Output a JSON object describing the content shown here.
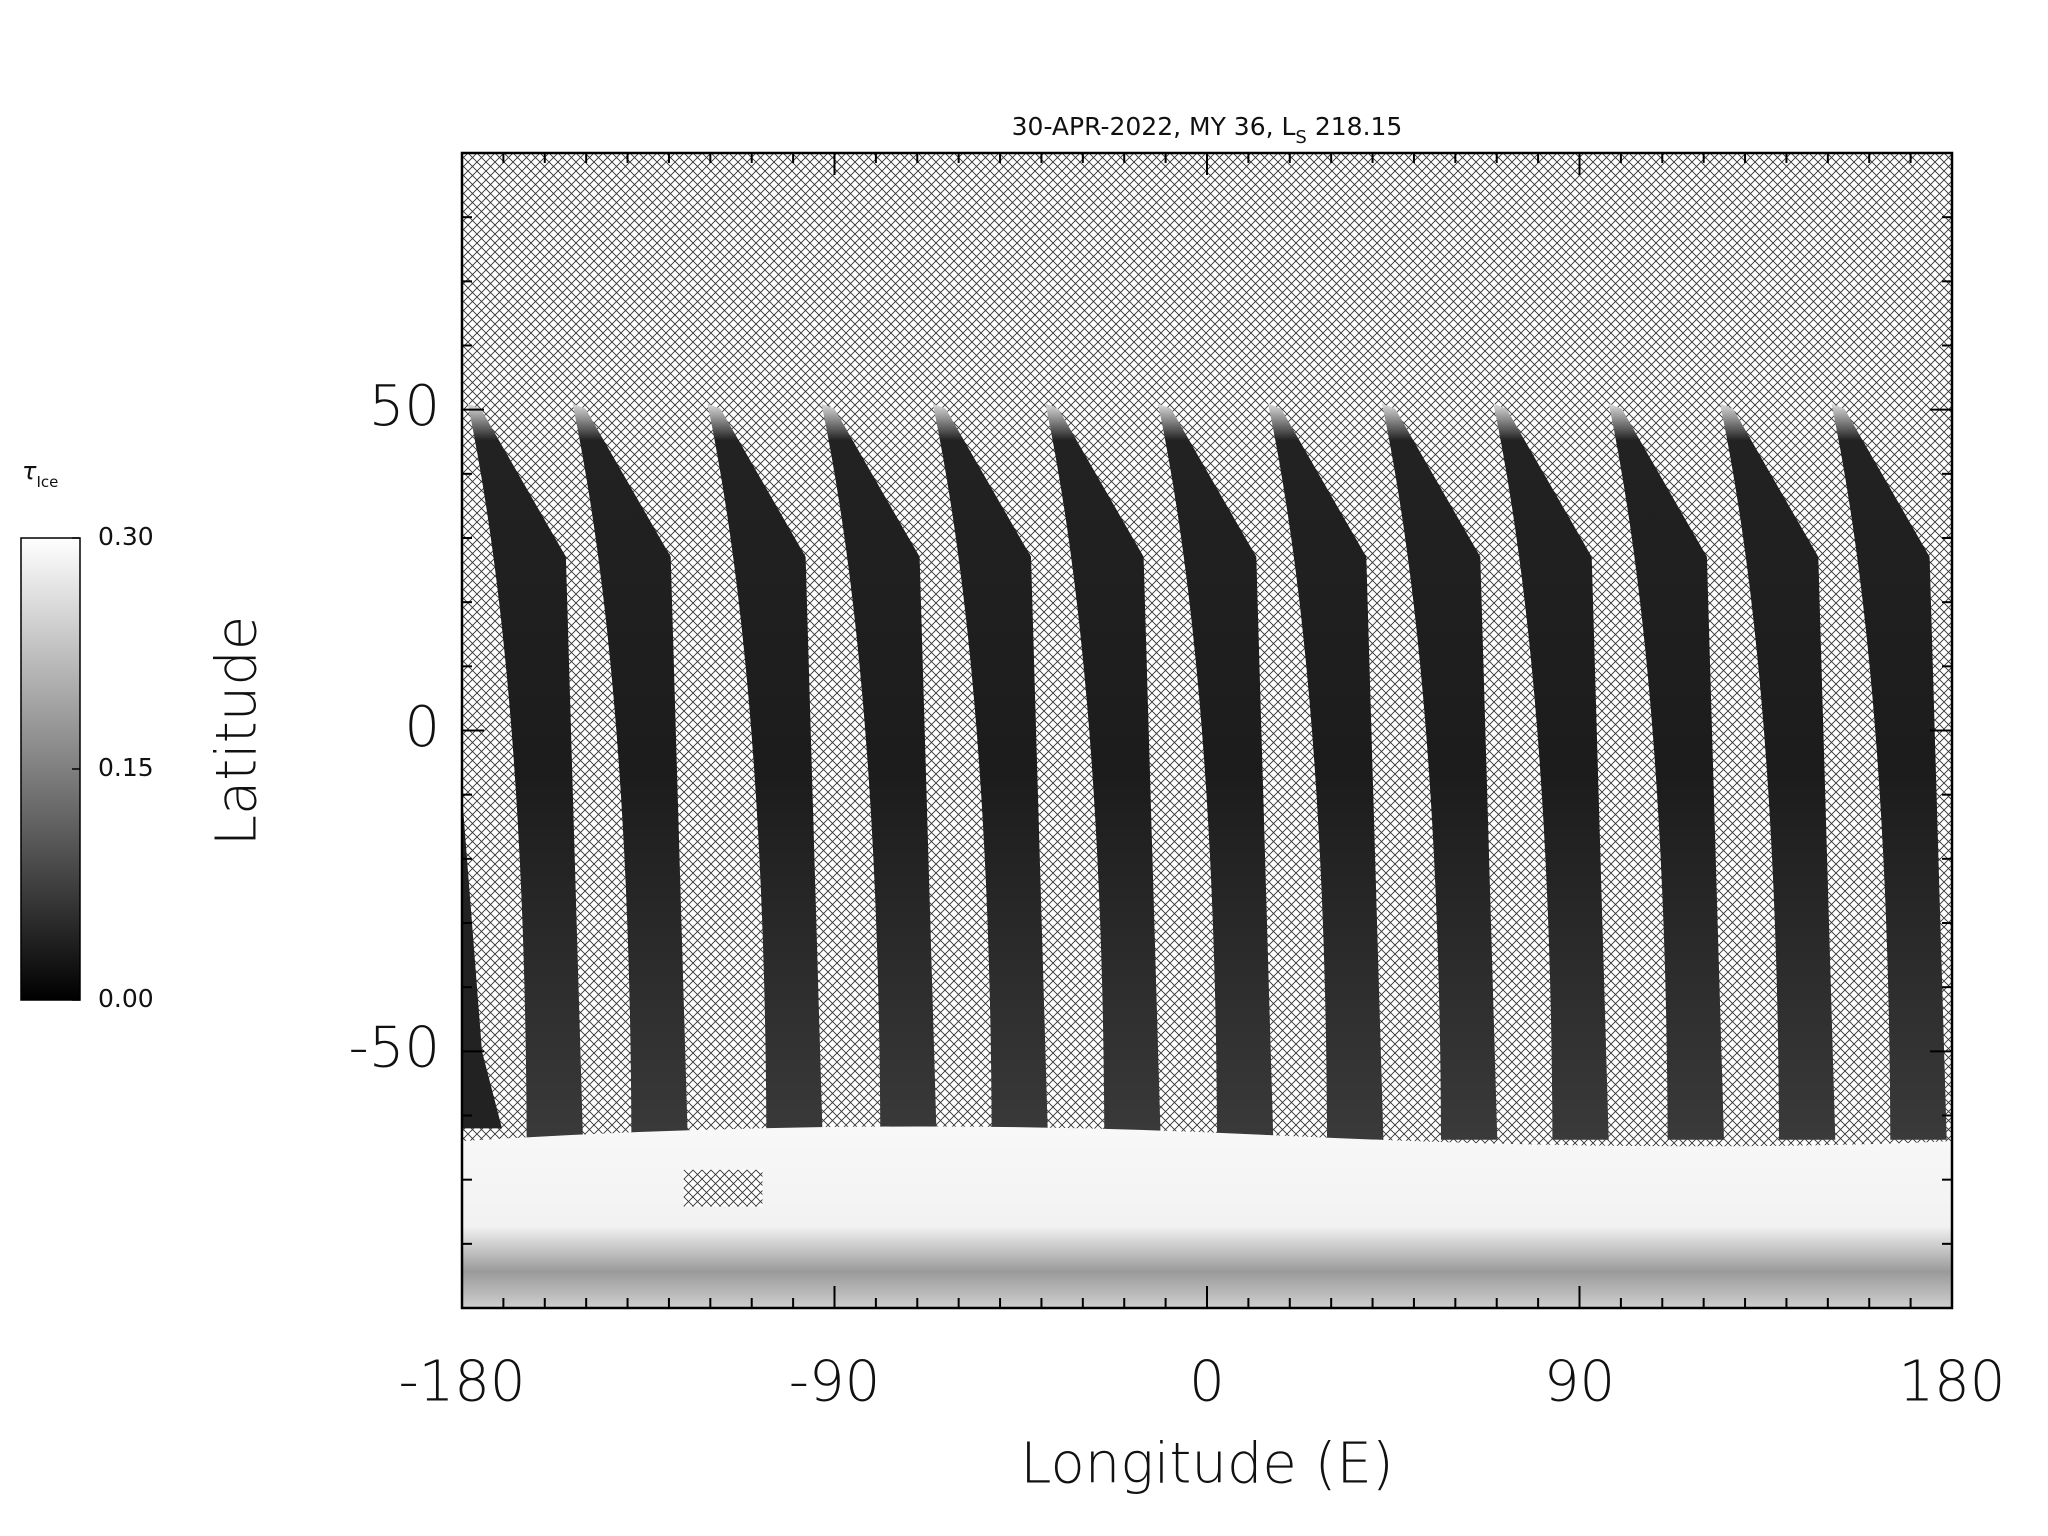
{
  "chart_data": {
    "type": "map",
    "title": "30-APR-2022, MY 36,  L",
    "title_subscript": "S",
    "title_suffix": "218.15",
    "xlabel": "Longitude (E)",
    "ylabel": "Latitude",
    "xlim": [
      -180,
      180
    ],
    "ylim": [
      -90,
      90
    ],
    "xticks": [
      -180,
      -90,
      0,
      90,
      180
    ],
    "yticks": [
      -50,
      0,
      50
    ],
    "xminorticks": [
      -170,
      -160,
      -150,
      -140,
      -130,
      -120,
      -110,
      -100,
      -80,
      -70,
      -60,
      -50,
      -40,
      -30,
      -20,
      -10,
      10,
      20,
      30,
      40,
      50,
      60,
      70,
      80,
      100,
      110,
      120,
      130,
      140,
      150,
      160,
      170
    ],
    "yminorticks": [
      -80,
      -70,
      -60,
      -40,
      -30,
      -20,
      -10,
      10,
      20,
      30,
      40,
      60,
      70,
      80
    ],
    "colorbar": {
      "label": "τ",
      "label_subscript": "Ice",
      "lim": [
        0,
        0.3
      ],
      "ticks": [
        {
          "value": 0,
          "label": "0.00"
        },
        {
          "value": 0.15,
          "label": "0.15"
        },
        {
          "value": 0.3,
          "label": "0.30"
        }
      ],
      "colors": [
        "#000000",
        "#ffffff"
      ]
    }
  }
}
